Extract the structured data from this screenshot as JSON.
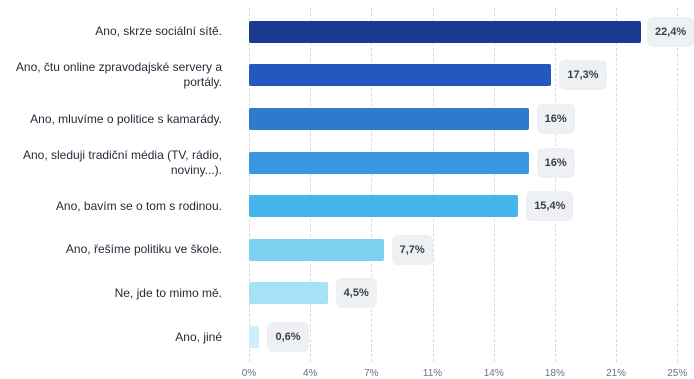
{
  "chart_data": {
    "type": "bar",
    "orientation": "horizontal",
    "categories": [
      "Ano, skrze sociální sítě.",
      "Ano, čtu online zpravodajské servery a portály.",
      "Ano, mluvíme o politice s kamarády.",
      "Ano, sleduji tradiční média (TV, rádio, noviny...).",
      "Ano, bavím se o tom s rodinou.",
      "Ano, řešíme politiku ve škole.",
      "Ne, jde to mimo mě.",
      "Ano, jiné"
    ],
    "values": [
      22.4,
      17.3,
      16,
      16,
      15.4,
      7.7,
      4.5,
      0.6
    ],
    "value_labels": [
      "22,4%",
      "17,3%",
      "16%",
      "16%",
      "15,4%",
      "7,7%",
      "4,5%",
      "0,6%"
    ],
    "bar_colors": [
      "#1a3a8f",
      "#2458bf",
      "#2f7ad0",
      "#3897e0",
      "#45b6ea",
      "#7dd2f2",
      "#a6e2f7",
      "#cdeefa"
    ],
    "xlim": [
      0,
      25
    ],
    "x_ticks": [
      0,
      3.5,
      7,
      10.5,
      14,
      17.5,
      21,
      24.5
    ],
    "x_tick_labels": [
      "0%",
      "4%",
      "7%",
      "11%",
      "14%",
      "18%",
      "21%",
      "25%"
    ],
    "grid": true,
    "title": "",
    "xlabel": "",
    "ylabel": ""
  }
}
